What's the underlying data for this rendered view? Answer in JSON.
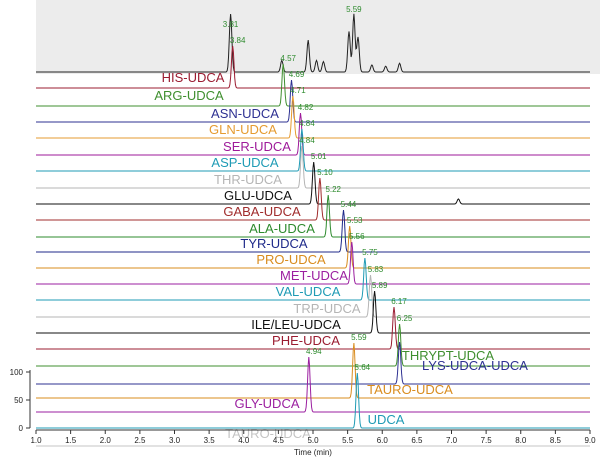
{
  "chart_data": {
    "type": "line",
    "subtype": "stacked chromatogram overlay",
    "xlabel": "Time (min)",
    "xlim": [
      1.0,
      9.0
    ],
    "x_ticks": [
      "1.0",
      "1.5",
      "2.0",
      "2.5",
      "3.0",
      "3.5",
      "4.0",
      "4.5",
      "5.0",
      "5.5",
      "6.0",
      "6.5",
      "7.0",
      "7.5",
      "8.0",
      "8.5",
      "9.0"
    ],
    "y_ticks": [
      "100",
      "50",
      "0"
    ],
    "ylim": [
      0,
      100
    ],
    "grid": false,
    "tic_trace": {
      "background": "#ececec",
      "color": "#222222",
      "peaks": [
        {
          "rt": 3.81,
          "height": 100
        },
        {
          "rt": 4.55,
          "height": 20
        },
        {
          "rt": 4.93,
          "height": 55
        },
        {
          "rt": 5.05,
          "height": 20
        },
        {
          "rt": 5.15,
          "height": 18
        },
        {
          "rt": 5.52,
          "height": 70
        },
        {
          "rt": 5.59,
          "height": 100
        },
        {
          "rt": 5.65,
          "height": 60
        },
        {
          "rt": 5.85,
          "height": 12
        },
        {
          "rt": 6.05,
          "height": 10
        },
        {
          "rt": 6.25,
          "height": 15
        }
      ],
      "rt_labels": [
        "3.81",
        "5.59"
      ]
    },
    "series": [
      {
        "name": "HIS-UDCA",
        "rt": 3.84,
        "rt_label": "3.84",
        "color": "#9b1c31"
      },
      {
        "name": "ARG-UDCA",
        "rt": 4.57,
        "rt_label": "4.57",
        "color": "#3f8f2f"
      },
      {
        "name": "ASN-UDCA",
        "rt": 4.69,
        "rt_label": "4.69",
        "color": "#2e3192"
      },
      {
        "name": "GLN-UDCA",
        "rt": 4.71,
        "rt_label": "4.71",
        "color": "#e69b30"
      },
      {
        "name": "SER-UDCA",
        "rt": 4.82,
        "rt_label": "4.82",
        "color": "#9e1a9a"
      },
      {
        "name": "ASP-UDCA",
        "rt": 4.84,
        "rt_label": "4.84",
        "color": "#1f9bb5"
      },
      {
        "name": "THR-UDCA",
        "rt": 4.84,
        "rt_label": "4.84",
        "color": "#b5b5b5"
      },
      {
        "name": "GLU-UDCA",
        "rt": 5.01,
        "rt_label": "5.01",
        "color": "#111111"
      },
      {
        "name": "GABA-UDCA",
        "rt": 5.1,
        "rt_label": "5.10",
        "color": "#a02c2c"
      },
      {
        "name": "ALA-UDCA",
        "rt": 5.22,
        "rt_label": "5.22",
        "color": "#2e8b2e"
      },
      {
        "name": "TYR-UDCA",
        "rt": 5.44,
        "rt_label": "5.44",
        "color": "#1f2a8a"
      },
      {
        "name": "PRO-UDCA",
        "rt": 5.53,
        "rt_label": "5.53",
        "color": "#d98c1e"
      },
      {
        "name": "MET-UDCA",
        "rt": 5.56,
        "rt_label": "5.56",
        "color": "#9b1fa0"
      },
      {
        "name": "VAL-UDCA",
        "rt": 5.75,
        "rt_label": "5.75",
        "color": "#1f9bb5"
      },
      {
        "name": "TRP-UDCA",
        "rt": 5.83,
        "rt_label": "5.83",
        "color": "#b5b5b5"
      },
      {
        "name": "ILE/LEU-UDCA",
        "rt": 5.89,
        "rt_label": "5.89",
        "color": "#111111"
      },
      {
        "name": "PHE-UDCA",
        "rt": 6.17,
        "rt_label": "6.17",
        "color": "#9b1c31"
      },
      {
        "name": "THRYPT-UDCA",
        "rt": 6.25,
        "rt_label": "6.25",
        "color": "#3f8f2f"
      },
      {
        "name": "LYS-UDCA-UDCA",
        "rt": 6.25,
        "rt_label": "",
        "color": "#2e3192"
      },
      {
        "name": "TAURO-UDCA",
        "rt": 5.59,
        "rt_label": "5.59",
        "color": "#d98c1e"
      },
      {
        "name": "GLY-UDCA",
        "rt": 4.94,
        "rt_label": "4.94",
        "color": "#9b1fa0"
      },
      {
        "name": "UDCA",
        "rt": 5.64,
        "rt_label": "5.64",
        "color": "#1f9bb5"
      },
      {
        "name": "TAURO-UDCA",
        "rt": null,
        "rt_label": "",
        "color": "#c4c4c4"
      }
    ]
  }
}
